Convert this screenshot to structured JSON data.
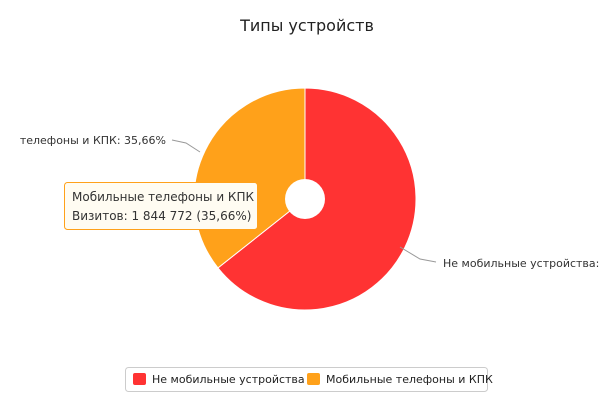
{
  "chart_data": {
    "type": "pie",
    "title": "Типы устройств",
    "categories": [
      "Не мобильные устройства",
      "Мобильные телефоны и КПК"
    ],
    "values": [
      64.34,
      35.66
    ],
    "colors": [
      "#ff3333",
      "#ffa11a"
    ],
    "slice_labels": [
      "Не мобильные устройства:",
      "телефоны и КПК: 35,66%"
    ],
    "legend": {
      "placement": "bottom-center",
      "items": [
        "Не мобильные устройства",
        "Мобильные телефоны и КПК"
      ]
    }
  },
  "tooltip": {
    "title": "Мобильные телефоны и КПК",
    "body": "Визитов: 1 844 772 (35,66%)"
  }
}
